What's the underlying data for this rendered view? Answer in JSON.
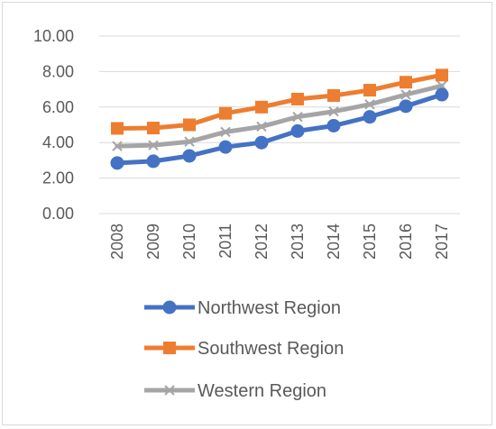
{
  "chart_data": {
    "type": "line",
    "categories": [
      "2008",
      "2009",
      "2010",
      "2011",
      "2012",
      "2013",
      "2014",
      "2015",
      "2016",
      "2017"
    ],
    "ylim": [
      0,
      10
    ],
    "yticks": [
      "0.00",
      "2.00",
      "4.00",
      "6.00",
      "8.00",
      "10.00"
    ],
    "grid": true,
    "legend_position": "bottom",
    "series": [
      {
        "name": "Northwest Region",
        "color": "#4472C4",
        "marker": "circle",
        "values": [
          2.85,
          2.95,
          3.25,
          3.75,
          4.0,
          4.65,
          4.95,
          5.45,
          6.05,
          6.7
        ]
      },
      {
        "name": "Southwest Region",
        "color": "#ED7D31",
        "marker": "square",
        "values": [
          4.8,
          4.82,
          5.0,
          5.65,
          6.0,
          6.45,
          6.65,
          6.95,
          7.4,
          7.8
        ]
      },
      {
        "name": "Western Region",
        "color": "#A5A5A5",
        "marker": "x",
        "values": [
          3.8,
          3.85,
          4.05,
          4.6,
          4.9,
          5.45,
          5.75,
          6.15,
          6.7,
          7.2
        ]
      }
    ]
  }
}
